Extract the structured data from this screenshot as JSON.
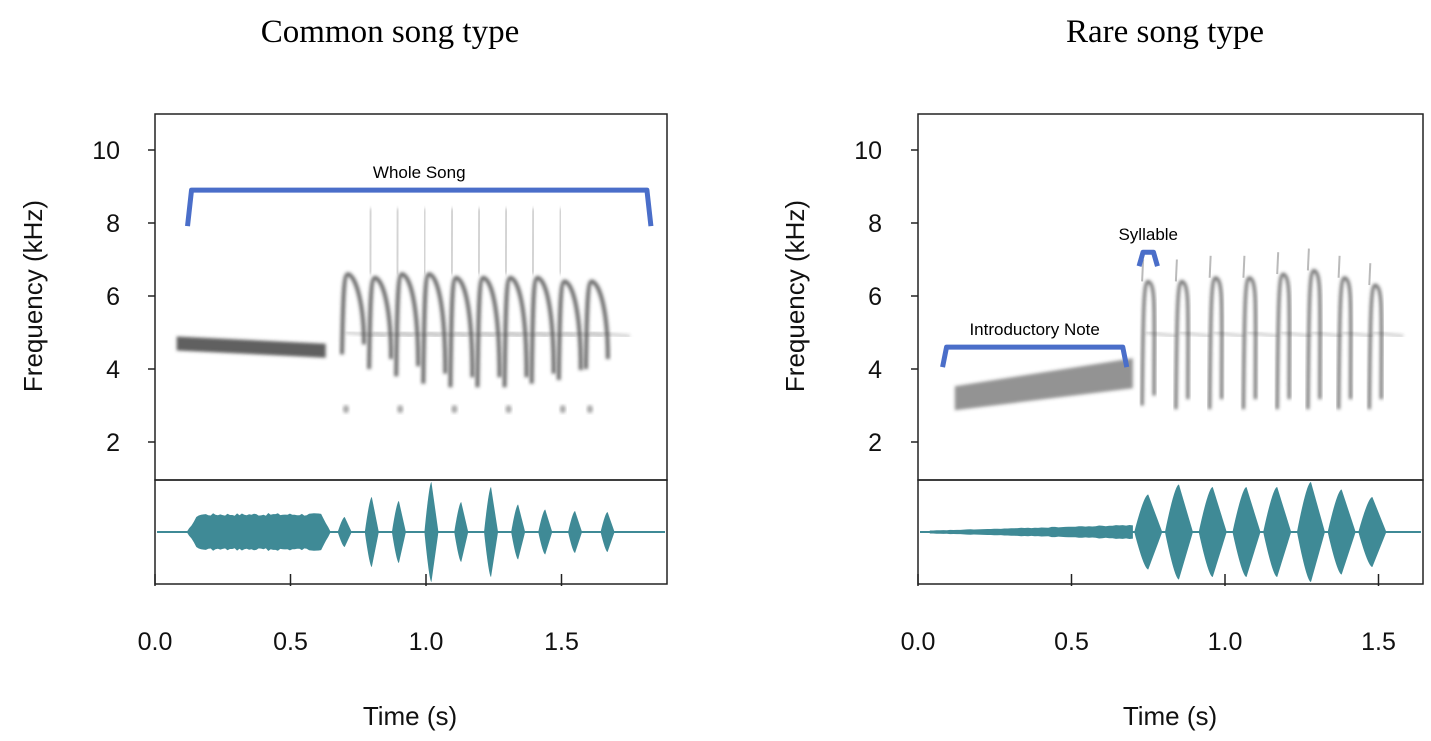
{
  "chart_data": [
    {
      "type": "spectrogram",
      "title": "Common song type",
      "xlabel": "Time (s)",
      "ylabel": "Frequency (kHz)",
      "xlim": [
        0.0,
        1.9
      ],
      "ylim": [
        1.0,
        11.0
      ],
      "xticks": [
        "0.0",
        "0.5",
        "1.0",
        "1.5"
      ],
      "yticks": [
        "2",
        "4",
        "6",
        "8",
        "10"
      ],
      "annotations": [
        {
          "label": "Whole Song",
          "kind": "bracket",
          "start_s": 0.12,
          "end_s": 1.83,
          "freq_khz": 8.9
        }
      ],
      "introductory_note": {
        "start_s": 0.08,
        "end_s": 0.63,
        "freq_start_khz": 4.7,
        "freq_end_khz": 4.5
      },
      "syllables": [
        {
          "time_s": 0.69,
          "peak_khz": 6.6,
          "low_khz": 4.4
        },
        {
          "time_s": 0.79,
          "peak_khz": 6.5,
          "low_khz": 4.0
        },
        {
          "time_s": 0.89,
          "peak_khz": 6.6,
          "low_khz": 3.8
        },
        {
          "time_s": 0.99,
          "peak_khz": 6.6,
          "low_khz": 3.6
        },
        {
          "time_s": 1.09,
          "peak_khz": 6.5,
          "low_khz": 3.5
        },
        {
          "time_s": 1.19,
          "peak_khz": 6.5,
          "low_khz": 3.5
        },
        {
          "time_s": 1.29,
          "peak_khz": 6.5,
          "low_khz": 3.5
        },
        {
          "time_s": 1.39,
          "peak_khz": 6.5,
          "low_khz": 3.6
        },
        {
          "time_s": 1.49,
          "peak_khz": 6.4,
          "low_khz": 3.7
        },
        {
          "time_s": 1.59,
          "peak_khz": 6.4,
          "low_khz": 4.0
        }
      ],
      "waveform": {
        "note_amplitude": 0.38,
        "pulses": [
          {
            "time_s": 0.7,
            "amp": 0.3
          },
          {
            "time_s": 0.8,
            "amp": 0.7
          },
          {
            "time_s": 0.9,
            "amp": 0.62
          },
          {
            "time_s": 1.02,
            "amp": 1.0
          },
          {
            "time_s": 1.13,
            "amp": 0.6
          },
          {
            "time_s": 1.24,
            "amp": 0.9
          },
          {
            "time_s": 1.34,
            "amp": 0.55
          },
          {
            "time_s": 1.44,
            "amp": 0.45
          },
          {
            "time_s": 1.55,
            "amp": 0.42
          },
          {
            "time_s": 1.67,
            "amp": 0.4
          }
        ]
      }
    },
    {
      "type": "spectrogram",
      "title": "Rare song type",
      "xlabel": "Time (s)",
      "ylabel": "Frequency (kHz)",
      "xlim": [
        0.0,
        1.75
      ],
      "ylim": [
        1.0,
        11.0
      ],
      "xticks": [
        "0.0",
        "0.5",
        "1.0",
        "1.5"
      ],
      "yticks": [
        "2",
        "4",
        "6",
        "8",
        "10"
      ],
      "annotations": [
        {
          "label": "Introductory Note",
          "kind": "bracket",
          "start_s": 0.08,
          "end_s": 0.68,
          "freq_khz": 4.6
        },
        {
          "label": "Syllable",
          "kind": "bracket",
          "start_s": 0.72,
          "end_s": 0.78,
          "freq_khz": 7.2
        }
      ],
      "introductory_note": {
        "start_s": 0.12,
        "end_s": 0.7,
        "freq_start_khz": 3.2,
        "freq_end_khz": 3.8
      },
      "syllables": [
        {
          "time_s": 0.73,
          "peak_khz": 6.4,
          "low_khz": 3.0
        },
        {
          "time_s": 0.84,
          "peak_khz": 6.4,
          "low_khz": 2.9
        },
        {
          "time_s": 0.95,
          "peak_khz": 6.5,
          "low_khz": 2.9
        },
        {
          "time_s": 1.06,
          "peak_khz": 6.5,
          "low_khz": 2.9
        },
        {
          "time_s": 1.17,
          "peak_khz": 6.6,
          "low_khz": 2.9
        },
        {
          "time_s": 1.27,
          "peak_khz": 6.7,
          "low_khz": 2.9
        },
        {
          "time_s": 1.37,
          "peak_khz": 6.5,
          "low_khz": 2.9
        },
        {
          "time_s": 1.47,
          "peak_khz": 6.3,
          "low_khz": 2.9
        }
      ],
      "waveform": {
        "note_amplitude": 0.15,
        "pulses": [
          {
            "time_s": 0.75,
            "amp": 0.75
          },
          {
            "time_s": 0.85,
            "amp": 0.95
          },
          {
            "time_s": 0.96,
            "amp": 0.9
          },
          {
            "time_s": 1.07,
            "amp": 0.9
          },
          {
            "time_s": 1.17,
            "amp": 0.9
          },
          {
            "time_s": 1.28,
            "amp": 1.0
          },
          {
            "time_s": 1.38,
            "amp": 0.85
          },
          {
            "time_s": 1.48,
            "amp": 0.7
          }
        ]
      }
    }
  ],
  "colors": {
    "bracket": "#4a6ec9",
    "waveform": "#3f8a96",
    "spectrogram_ink": "#3a3a3a",
    "axis": "#222222"
  }
}
